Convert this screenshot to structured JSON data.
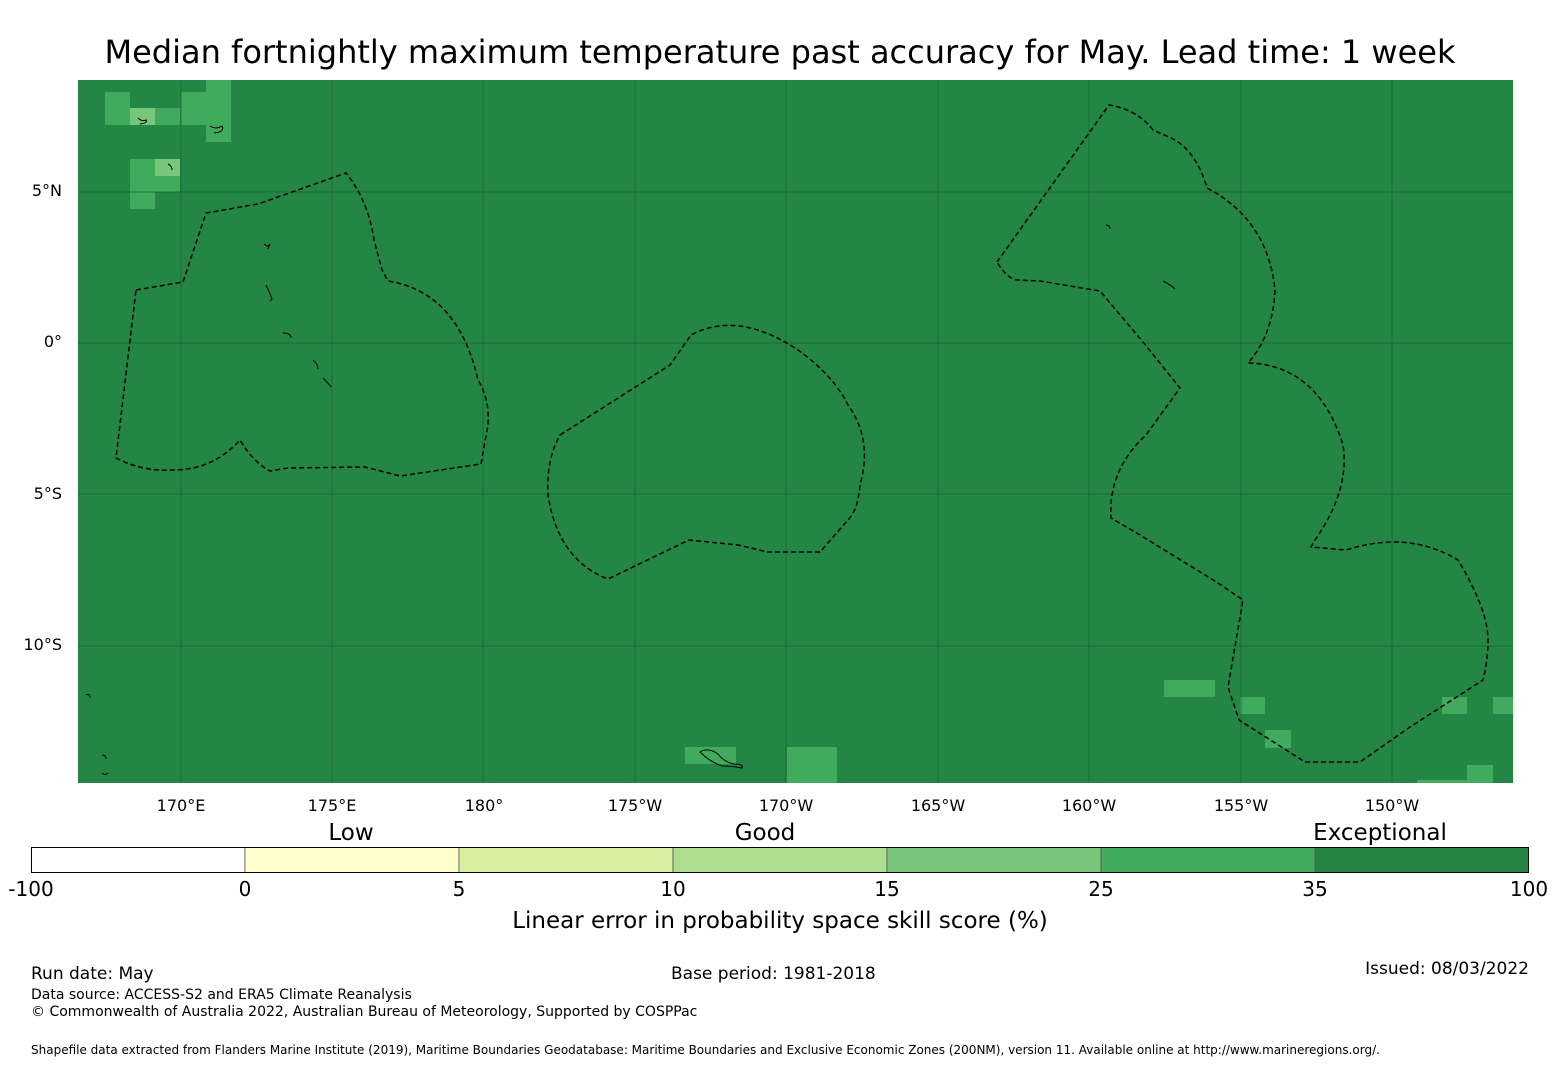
{
  "title": "Median fortnightly maximum temperature past accuracy for May. Lead time: 1 week",
  "map": {
    "background_color": "#248645",
    "lat_labels": [
      "5°N",
      "0°",
      "5°S",
      "10°S"
    ],
    "lon_labels": [
      "170°E",
      "175°E",
      "180°",
      "175°W",
      "170°W",
      "165°W",
      "160°W",
      "155°W",
      "150°W"
    ]
  },
  "legend": {
    "categories": [
      "Low",
      "Good",
      "Exceptional"
    ],
    "ticks": [
      "-100",
      "0",
      "5",
      "10",
      "15",
      "25",
      "35",
      "100"
    ],
    "colors": [
      "#ffffff",
      "#ffffcc",
      "#d9f0a3",
      "#addd8e",
      "#78c679",
      "#41ab5d",
      "#238443"
    ],
    "label": "Linear error in probability space skill score (%)"
  },
  "footer": {
    "run_date": "Run date: May",
    "base_period": "Base period: 1981-2018",
    "issued": "Issued: 08/03/2022",
    "data_source": "Data source: ACCESS-S2 and ERA5 Climate Reanalysis",
    "copyright": "© Commonwealth of Australia 2022, Australian Bureau of Meteorology, Supported by COSPPac",
    "shapefile": "Shapefile data extracted from Flanders Marine Institute (2019), Maritime Boundaries Geodatabase: Maritime Boundaries and Exclusive Economic Zones (200NM), version 11. Available online at http://www.marineregions.org/."
  }
}
